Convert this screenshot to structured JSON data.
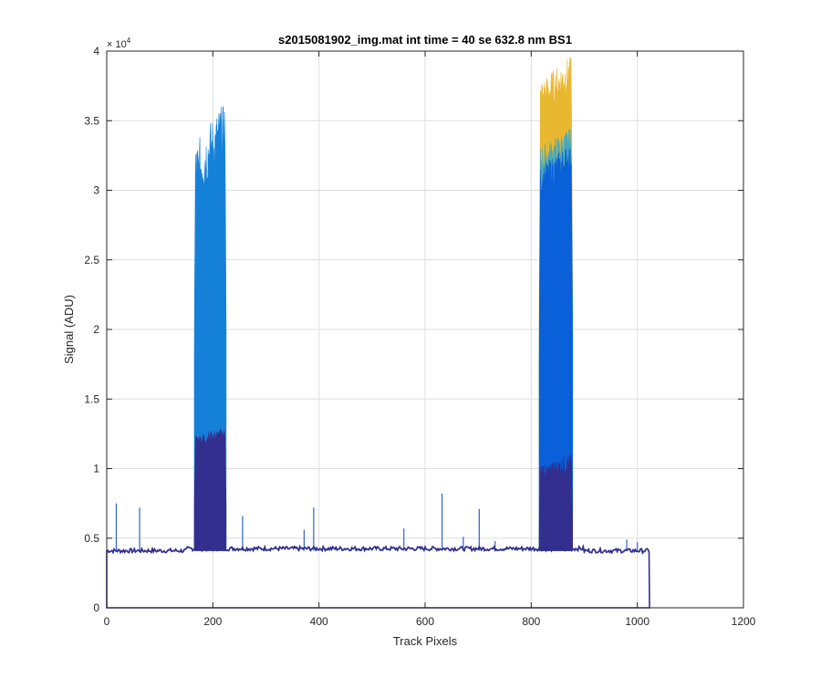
{
  "chart_data": {
    "type": "area",
    "title": "s2015081902_img.mat int time = 40 se  632.8 nm BS1",
    "xlabel": "Track Pixels",
    "ylabel": "Signal (ADU)",
    "xlim": [
      0,
      1200
    ],
    "ylim": [
      0,
      40000
    ],
    "y_exponent_label": "× 10",
    "y_exponent_power": "4",
    "x_ticks": [
      0,
      200,
      400,
      600,
      800,
      1000,
      1200
    ],
    "x_tick_labels": [
      "0",
      "200",
      "400",
      "600",
      "800",
      "1000",
      "1200"
    ],
    "y_ticks": [
      0,
      5000,
      10000,
      15000,
      20000,
      25000,
      30000,
      35000,
      40000
    ],
    "y_tick_labels": [
      "0",
      "0.5",
      "1",
      "1.5",
      "2",
      "2.5",
      "3",
      "3.5",
      "4"
    ],
    "grid": true,
    "baseline": 4100,
    "baseline_x_range": [
      0,
      1023
    ],
    "peaks": [
      {
        "x_start": 165,
        "x_end": 225,
        "layers": [
          {
            "color": "#1580d8",
            "top_start": 31000,
            "top_end": 34500,
            "max": 36000
          },
          {
            "color": "#322f8e",
            "top_start": 12000,
            "top_end": 12500,
            "max": 13000
          }
        ]
      },
      {
        "x_start": 815,
        "x_end": 878,
        "layers": [
          {
            "color": "#e8b830",
            "top_start": 36500,
            "top_end": 38500,
            "max": 39500
          },
          {
            "color": "#4aa8b8",
            "top_start": 32000,
            "top_end": 33500,
            "max": 34500
          },
          {
            "color": "#0a60d8",
            "top_start": 30500,
            "top_end": 32500,
            "max": 33000
          },
          {
            "color": "#322f8e",
            "top_start": 9500,
            "top_end": 10500,
            "max": 11000
          }
        ]
      }
    ],
    "spikes": [
      {
        "x": 18,
        "y": 7500,
        "color": "#2e64c8"
      },
      {
        "x": 62,
        "y": 7200,
        "color": "#2e64c8"
      },
      {
        "x": 256,
        "y": 6600,
        "color": "#2e64c8"
      },
      {
        "x": 372,
        "y": 5600,
        "color": "#2e64c8"
      },
      {
        "x": 390,
        "y": 7200,
        "color": "#2e64c8"
      },
      {
        "x": 560,
        "y": 5700,
        "color": "#2e64c8"
      },
      {
        "x": 632,
        "y": 8200,
        "color": "#2e64c8"
      },
      {
        "x": 672,
        "y": 5100,
        "color": "#2e64c8"
      },
      {
        "x": 702,
        "y": 7100,
        "color": "#2e64c8"
      },
      {
        "x": 732,
        "y": 4800,
        "color": "#2e64c8"
      },
      {
        "x": 980,
        "y": 4900,
        "color": "#2e64c8"
      },
      {
        "x": 1000,
        "y": 4700,
        "color": "#2e64c8"
      }
    ],
    "line_color": "#322f8e"
  }
}
